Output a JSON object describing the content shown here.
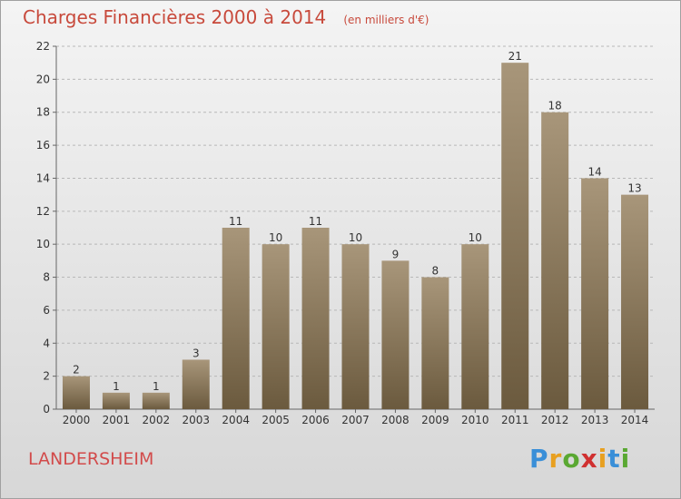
{
  "header": {
    "title": "Charges Financières 2000 à 2014",
    "subtitle": "(en milliers d'€)"
  },
  "footer": {
    "place": "LANDERSHEIM",
    "brand_letters": [
      {
        "ch": "P",
        "color": "#3a8fd8"
      },
      {
        "ch": "r",
        "color": "#e8a020"
      },
      {
        "ch": "o",
        "color": "#5aa832"
      },
      {
        "ch": "x",
        "color": "#d03030"
      },
      {
        "ch": "i",
        "color": "#e8a020"
      },
      {
        "ch": "t",
        "color": "#3a8fd8"
      },
      {
        "ch": "i",
        "color": "#5aa832"
      }
    ]
  },
  "colors": {
    "bar_top": "#a8967a",
    "bar_bottom": "#6b5a3e",
    "grid": "#b8b8b8",
    "axis": "#666666",
    "label": "#333333"
  },
  "chart_data": {
    "type": "bar",
    "title": "Charges Financières 2000 à 2014",
    "subtitle": "(en milliers d'€)",
    "categories": [
      "2000",
      "2001",
      "2002",
      "2003",
      "2004",
      "2005",
      "2006",
      "2007",
      "2008",
      "2009",
      "2010",
      "2011",
      "2012",
      "2013",
      "2014"
    ],
    "values": [
      2,
      1,
      1,
      3,
      11,
      10,
      11,
      10,
      9,
      8,
      10,
      21,
      18,
      14,
      13
    ],
    "ylim": [
      0,
      22
    ],
    "yticks": [
      0,
      2,
      4,
      6,
      8,
      10,
      12,
      14,
      16,
      18,
      20,
      22
    ],
    "grid": true,
    "legend": "none"
  }
}
